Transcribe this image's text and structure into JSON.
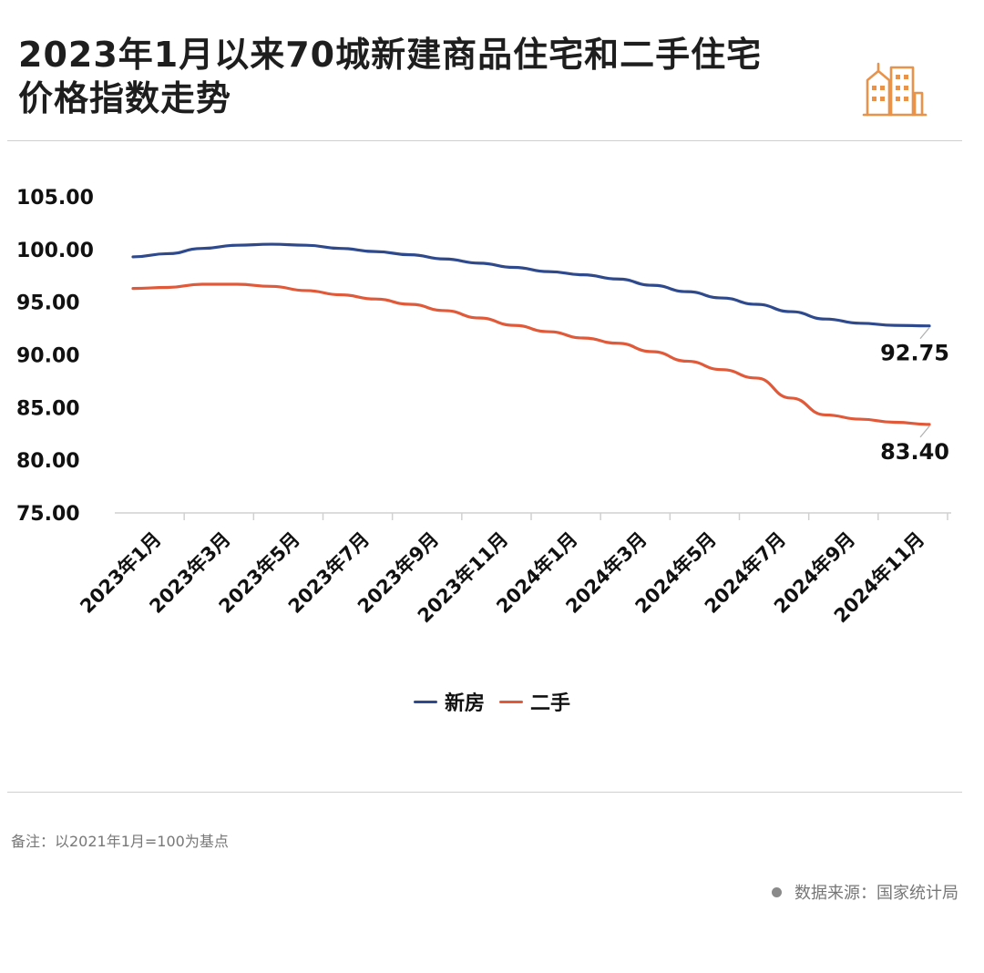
{
  "title_lines": [
    "2023年1月以来70城新建商品住宅和二手住宅",
    "价格指数走势"
  ],
  "icon": "city-buildings-icon",
  "colors": {
    "accent": "#E8924A",
    "new_homes": "#2F4A8C",
    "second_hand": "#E05A3A"
  },
  "chart_data": {
    "type": "line",
    "title": "2023年1月以来70城新建商品住宅和二手住宅价格指数走势",
    "xlabel": "",
    "ylabel": "",
    "ylim": [
      75,
      105
    ],
    "yticks": [
      "105.00",
      "100.00",
      "95.00",
      "90.00",
      "85.00",
      "80.00",
      "75.00"
    ],
    "x": [
      "2023年1月",
      "2023年2月",
      "2023年3月",
      "2023年4月",
      "2023年5月",
      "2023年6月",
      "2023年7月",
      "2023年8月",
      "2023年9月",
      "2023年10月",
      "2023年11月",
      "2023年12月",
      "2024年1月",
      "2024年2月",
      "2024年3月",
      "2024年4月",
      "2024年5月",
      "2024年6月",
      "2024年7月",
      "2024年8月",
      "2024年9月",
      "2024年10月",
      "2024年11月",
      "2024年12月"
    ],
    "xtick_labels": [
      "2023年1月",
      "2023年3月",
      "2023年5月",
      "2023年7月",
      "2023年9月",
      "2023年11月",
      "2024年1月",
      "2024年3月",
      "2024年5月",
      "2024年7月",
      "2024年9月",
      "2024年11月"
    ],
    "series": [
      {
        "name": "新房",
        "color": "#2F4A8C",
        "values": [
          99.3,
          99.6,
          100.1,
          100.4,
          100.5,
          100.4,
          100.1,
          99.8,
          99.5,
          99.1,
          98.7,
          98.3,
          97.9,
          97.6,
          97.2,
          96.6,
          96.0,
          95.4,
          94.8,
          94.1,
          93.4,
          93.0,
          92.8,
          92.75
        ]
      },
      {
        "name": "二手",
        "color": "#E05A3A",
        "values": [
          96.3,
          96.4,
          96.7,
          96.7,
          96.5,
          96.1,
          95.7,
          95.3,
          94.8,
          94.2,
          93.5,
          92.8,
          92.2,
          91.6,
          91.1,
          90.3,
          89.4,
          88.6,
          87.8,
          85.9,
          84.3,
          83.9,
          83.6,
          83.4
        ]
      }
    ],
    "end_labels": [
      "92.75",
      "83.40"
    ],
    "grid": false,
    "legend_position": "bottom-center"
  },
  "legend": [
    {
      "label": "新房",
      "color": "#2F4A8C"
    },
    {
      "label": "二手",
      "color": "#E05A3A"
    }
  ],
  "note": "备注：以2021年1月=100为基点",
  "source": "数据来源：国家统计局"
}
